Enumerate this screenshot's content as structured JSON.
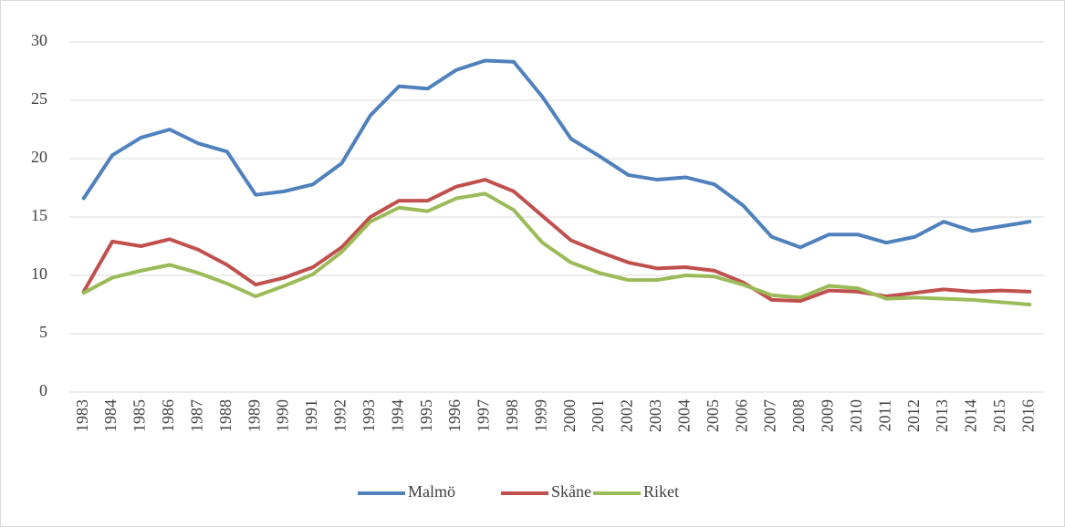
{
  "chart_data": {
    "type": "line",
    "categories": [
      "1983",
      "1984",
      "1985",
      "1986",
      "1987",
      "1988",
      "1989",
      "1990",
      "1991",
      "1992",
      "1993",
      "1994",
      "1995",
      "1996",
      "1997",
      "1998",
      "1999",
      "2000",
      "2001",
      "2002",
      "2003",
      "2004",
      "2005",
      "2006",
      "2007",
      "2008",
      "2009",
      "2010",
      "2011",
      "2012",
      "2013",
      "2014",
      "2015",
      "2016"
    ],
    "series": [
      {
        "name": "Malmö",
        "color": "#4f81bd",
        "values": [
          16.6,
          20.3,
          21.8,
          22.5,
          21.3,
          20.6,
          16.9,
          17.2,
          17.8,
          19.6,
          23.7,
          26.2,
          26.0,
          27.6,
          28.4,
          28.3,
          25.3,
          21.7,
          20.2,
          18.6,
          18.2,
          18.4,
          17.8,
          16.0,
          13.3,
          12.4,
          13.5,
          13.5,
          12.8,
          13.3,
          14.6,
          13.8,
          14.2,
          14.6
        ]
      },
      {
        "name": "Skåne",
        "color": "#c0504d",
        "values": [
          8.6,
          12.9,
          12.5,
          13.1,
          12.2,
          10.9,
          9.2,
          9.8,
          10.7,
          12.4,
          15.0,
          16.4,
          16.4,
          17.6,
          18.2,
          17.2,
          15.1,
          13.0,
          12.0,
          11.1,
          10.6,
          10.7,
          10.4,
          9.4,
          7.9,
          7.8,
          8.7,
          8.6,
          8.2,
          8.5,
          8.8,
          8.6,
          8.7,
          8.6
        ]
      },
      {
        "name": "Riket",
        "color": "#9bbb59",
        "values": [
          8.5,
          9.8,
          10.4,
          10.9,
          10.2,
          9.3,
          8.2,
          9.1,
          10.1,
          12.0,
          14.6,
          15.8,
          15.5,
          16.6,
          17.0,
          15.6,
          12.8,
          11.1,
          10.2,
          9.6,
          9.6,
          10.0,
          9.9,
          9.2,
          8.3,
          8.1,
          9.1,
          8.9,
          8.0,
          8.1,
          8.0,
          7.9,
          7.7,
          7.5
        ]
      }
    ],
    "ylim": [
      0,
      30
    ],
    "yticks": [
      0,
      5,
      10,
      15,
      20,
      25,
      30
    ],
    "grid": true,
    "legend": "bottom"
  }
}
